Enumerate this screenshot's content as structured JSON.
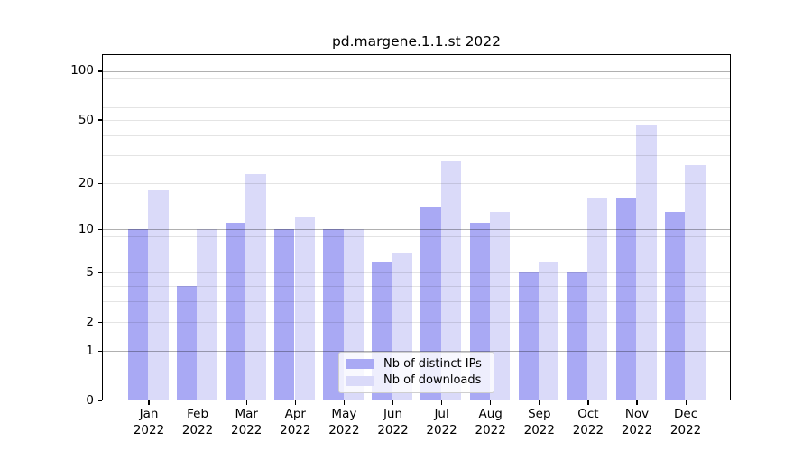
{
  "chart_data": {
    "type": "bar",
    "title": "pd.margene.1.1.st 2022",
    "categories": [
      "Jan",
      "Feb",
      "Mar",
      "Apr",
      "May",
      "Jun",
      "Jul",
      "Aug",
      "Sep",
      "Oct",
      "Nov",
      "Dec"
    ],
    "x_tick_second_line": "2022",
    "series": [
      {
        "name": "Nb of distinct IPs",
        "color": "#a9a9f4",
        "values": [
          10,
          4,
          11,
          10,
          10,
          6,
          14,
          11,
          5,
          5,
          16,
          13
        ]
      },
      {
        "name": "Nb of downloads",
        "color": "#dadaf9",
        "values": [
          18,
          10,
          23,
          12,
          10,
          7,
          28,
          13,
          6,
          16,
          46,
          26
        ]
      }
    ],
    "y_axis": {
      "scale": "log1p",
      "ylim": [
        0,
        127
      ],
      "ticks": [
        0,
        1,
        2,
        5,
        10,
        20,
        50,
        100
      ],
      "decade_ticks": [
        1,
        10,
        100
      ],
      "minor_ticks": [
        3,
        4,
        6,
        7,
        8,
        9,
        30,
        40,
        60,
        70,
        80,
        90
      ]
    },
    "legend": {
      "position": "lower center"
    },
    "grid": {
      "major_color": "#b0b0b0",
      "minor_color": "#e4e4e4"
    },
    "axis_color": "#000000"
  }
}
